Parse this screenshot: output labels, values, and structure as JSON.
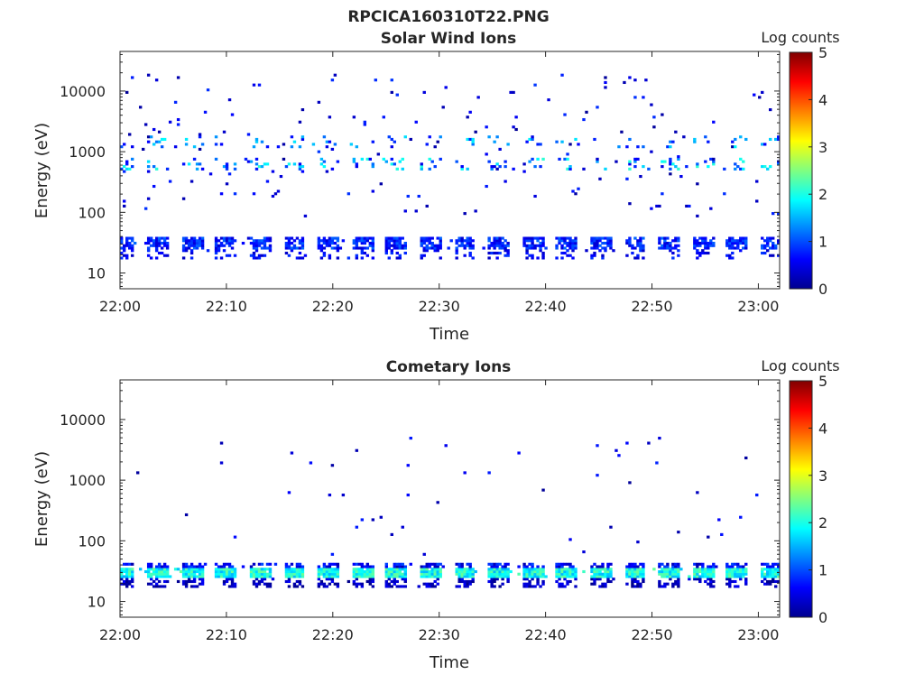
{
  "figure": {
    "title": "RPCICA160310T22.PNG"
  },
  "chart_data": [
    {
      "type": "heatmap",
      "title": "Solar Wind Ions",
      "xlabel": "Time",
      "ylabel": "Energy (eV)",
      "x_ticks": [
        "22:00",
        "22:10",
        "22:20",
        "22:30",
        "22:40",
        "22:50",
        "23:00"
      ],
      "x_range": [
        "22:00",
        "23:02"
      ],
      "y_scale": "log",
      "y_ticks": [
        "10",
        "100",
        "1000",
        "10000"
      ],
      "y_range": [
        5.5,
        45000
      ],
      "colorbar": {
        "label": "Log counts",
        "ticks": [
          "0",
          "1",
          "2",
          "3",
          "4",
          "5"
        ],
        "range": [
          0,
          5
        ],
        "colormap": "jet"
      },
      "sweep_period_min": 3.2,
      "bands": [
        {
          "e_low": 24,
          "e_high": 38,
          "density": 0.72,
          "level_min": 0.4,
          "level_max": 1.15
        },
        {
          "e_low": 17,
          "e_high": 24,
          "density": 0.28,
          "level_min": 0.3,
          "level_max": 0.9
        },
        {
          "e_low": 480,
          "e_high": 800,
          "density": 0.18,
          "level_min": 0.5,
          "level_max": 2.1
        },
        {
          "e_low": 1200,
          "e_high": 1800,
          "density": 0.1,
          "level_min": 0.5,
          "level_max": 1.9
        },
        {
          "e_low": 80,
          "e_high": 20000,
          "density": 0.012,
          "level_min": 0.1,
          "level_max": 0.9
        }
      ]
    },
    {
      "type": "heatmap",
      "title": "Cometary Ions",
      "xlabel": "Time",
      "ylabel": "Energy (eV)",
      "x_ticks": [
        "22:00",
        "22:10",
        "22:20",
        "22:30",
        "22:40",
        "22:50",
        "23:00"
      ],
      "x_range": [
        "22:00",
        "23:02"
      ],
      "y_scale": "log",
      "y_ticks": [
        "10",
        "100",
        "1000",
        "10000"
      ],
      "y_range": [
        5.5,
        45000
      ],
      "colorbar": {
        "label": "Log counts",
        "ticks": [
          "0",
          "1",
          "2",
          "3",
          "4",
          "5"
        ],
        "range": [
          0,
          5
        ],
        "colormap": "jet"
      },
      "sweep_period_min": 3.2,
      "bands": [
        {
          "e_low": 25,
          "e_high": 36,
          "density": 0.95,
          "level_min": 1.5,
          "level_max": 2.4
        },
        {
          "e_low": 36,
          "e_high": 44,
          "density": 0.6,
          "level_min": 0.2,
          "level_max": 1.0
        },
        {
          "e_low": 17,
          "e_high": 25,
          "density": 0.45,
          "level_min": 0.05,
          "level_max": 0.6
        },
        {
          "e_low": 60,
          "e_high": 5000,
          "density": 0.004,
          "level_min": 0.1,
          "level_max": 0.8
        }
      ]
    }
  ]
}
